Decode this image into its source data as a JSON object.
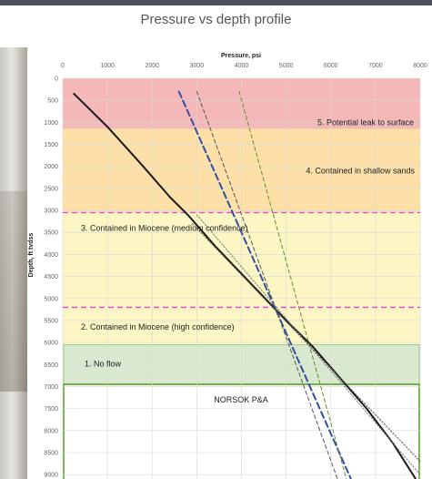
{
  "chart_data": {
    "type": "line",
    "title": "Pressure vs depth profile",
    "xlabel": "Pressure, psi",
    "ylabel": "Depth, ft tvdss",
    "xlim": [
      0,
      8000
    ],
    "ylim": [
      0,
      9100
    ],
    "x_axis_position": "top",
    "y_axis_inverted": true,
    "grid": true,
    "x_ticks": [
      0,
      1000,
      2000,
      3000,
      4000,
      5000,
      6000,
      7000,
      8000
    ],
    "y_ticks": [
      0,
      500,
      1000,
      1500,
      2000,
      2500,
      3000,
      3500,
      4000,
      4500,
      5000,
      5500,
      6000,
      6500,
      7000,
      7500,
      8000,
      8500,
      9000
    ],
    "zones": [
      {
        "label": "5. Potential leak to surface",
        "from": 0,
        "to": 1150,
        "color": "#f4b8b8"
      },
      {
        "label": "4. Contained in shallow sands",
        "from": 1150,
        "to": 3050,
        "color": "#fce0a8"
      },
      {
        "label": "3. Contained in Miocene (medium confidence)",
        "from": 3050,
        "to": 5200,
        "color": "#fbf6c4"
      },
      {
        "label": "2. Contained in Miocene (high confidence)",
        "from": 5200,
        "to": 6050,
        "color": "#fbf6c4"
      },
      {
        "label": "1. No flow",
        "from": 6050,
        "to": 6950,
        "color": "#d9e9cf"
      },
      {
        "label": "NORSOK P&A",
        "from": 6950,
        "to": 9100,
        "color": "#ffffff"
      }
    ],
    "boundary_lines": [
      {
        "depth": 3050,
        "color": "#e040e0"
      },
      {
        "depth": 5200,
        "color": "#e040e0"
      }
    ],
    "series": [
      {
        "color": "#1a1a1a",
        "style": "solid",
        "width": 2,
        "points": [
          [
            250,
            350
          ],
          [
            1000,
            1100
          ],
          [
            1800,
            2000
          ],
          [
            2400,
            2700
          ],
          [
            2800,
            3100
          ],
          [
            3400,
            3800
          ],
          [
            4200,
            4650
          ],
          [
            5000,
            5500
          ],
          [
            5600,
            6100
          ],
          [
            6200,
            6800
          ],
          [
            6800,
            7500
          ],
          [
            7400,
            8300
          ],
          [
            7900,
            9100
          ]
        ]
      },
      {
        "color": "#2f4fa0",
        "style": "dashed",
        "width": 2,
        "points": [
          [
            2600,
            300
          ],
          [
            6450,
            9100
          ]
        ]
      },
      {
        "color": "#555555",
        "style": "dashed",
        "width": 1,
        "points": [
          [
            3000,
            300
          ],
          [
            6150,
            9100
          ]
        ]
      },
      {
        "color": "#6a8a2a",
        "style": "dashed",
        "width": 1,
        "points": [
          [
            3950,
            300
          ],
          [
            6350,
            9100
          ]
        ]
      },
      {
        "color": "#777777",
        "style": "dotted",
        "width": 1,
        "points": [
          [
            3000,
            3100
          ],
          [
            8000,
            9000
          ]
        ]
      },
      {
        "color": "#555555",
        "style": "dotted",
        "width": 1,
        "points": [
          [
            2900,
            3300
          ],
          [
            8000,
            8700
          ]
        ]
      }
    ]
  }
}
